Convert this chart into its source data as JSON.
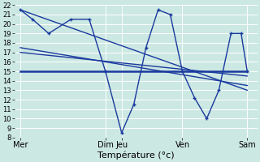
{
  "title": "Température (°c)",
  "bg_color": "#cce8e3",
  "line_color": "#1a3a9e",
  "ylim": [
    8,
    22
  ],
  "yticks": [
    8,
    9,
    10,
    11,
    12,
    13,
    14,
    15,
    16,
    17,
    18,
    19,
    20,
    21,
    22
  ],
  "xlim": [
    0,
    12
  ],
  "day_positions": [
    0.3,
    4.5,
    5.3,
    8.3,
    11.5
  ],
  "day_labels": [
    "Mer",
    "Dim",
    "Jeu",
    "Ven",
    "Sam"
  ],
  "vlines": [
    0.3,
    4.5,
    5.3,
    8.3,
    11.5
  ],
  "series_main": {
    "x": [
      0.3,
      0.9,
      1.7,
      2.8,
      3.7,
      4.5,
      5.3,
      5.9,
      6.5,
      7.1,
      7.7,
      8.3,
      8.9,
      9.5,
      10.1,
      10.7,
      11.2,
      11.5
    ],
    "y": [
      21.5,
      20.5,
      19.0,
      20.5,
      20.5,
      15.0,
      8.5,
      11.5,
      17.5,
      21.5,
      21.0,
      15.0,
      12.2,
      10.0,
      13.0,
      19.0,
      19.0,
      15.0
    ]
  },
  "series_horiz": {
    "x": [
      0.3,
      11.5
    ],
    "y": [
      15.0,
      15.0
    ]
  },
  "series_diag1": {
    "x": [
      0.3,
      11.5
    ],
    "y": [
      21.5,
      13.0
    ]
  },
  "series_diag2": {
    "x": [
      0.3,
      11.5
    ],
    "y": [
      17.5,
      13.5
    ]
  },
  "series_diag3": {
    "x": [
      0.3,
      11.5
    ],
    "y": [
      17.0,
      14.5
    ]
  }
}
